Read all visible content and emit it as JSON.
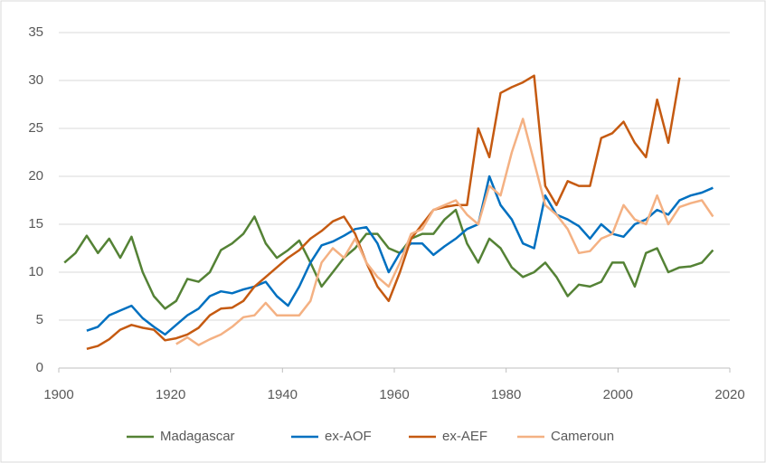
{
  "chart_data": {
    "type": "line",
    "x": [
      1901,
      1903,
      1905,
      1907,
      1909,
      1911,
      1913,
      1915,
      1917,
      1919,
      1921,
      1923,
      1925,
      1927,
      1929,
      1931,
      1933,
      1935,
      1937,
      1939,
      1941,
      1943,
      1945,
      1947,
      1949,
      1951,
      1953,
      1955,
      1957,
      1959,
      1961,
      1963,
      1965,
      1967,
      1969,
      1971,
      1973,
      1975,
      1977,
      1979,
      1981,
      1983,
      1985,
      1987,
      1989,
      1991,
      1993,
      1995,
      1997,
      1999,
      2001,
      2003,
      2005,
      2007,
      2009,
      2011,
      2013,
      2015,
      2017
    ],
    "series": [
      {
        "name": "Madagascar",
        "color": "#548235",
        "values": [
          11,
          12,
          13.8,
          12,
          13.5,
          11.5,
          13.7,
          10,
          7.5,
          6.2,
          7,
          9.3,
          9,
          10,
          12.3,
          13,
          14,
          15.8,
          13,
          11.5,
          12.3,
          13.3,
          11,
          8.5,
          10,
          11.5,
          12.5,
          14,
          14,
          12.5,
          12,
          13.5,
          14,
          14,
          15.5,
          16.5,
          13,
          11,
          13.5,
          12.5,
          10.5,
          9.5,
          10,
          11,
          9.5,
          7.5,
          8.7,
          8.5,
          9,
          11,
          11,
          8.5,
          12,
          12.5,
          10,
          10.5,
          10.6,
          11,
          12.3
        ]
      },
      {
        "name": "ex-AOF",
        "color": "#0070c0",
        "values": [
          null,
          null,
          3.9,
          4.3,
          5.5,
          6,
          6.5,
          5.2,
          4.3,
          3.5,
          4.5,
          5.5,
          6.2,
          7.5,
          8,
          7.8,
          8.2,
          8.5,
          9,
          7.5,
          6.5,
          8.5,
          11,
          12.8,
          13.2,
          13.8,
          14.5,
          14.7,
          13,
          10,
          12,
          13,
          13,
          11.8,
          12.7,
          13.5,
          14.5,
          15,
          20,
          17,
          15.5,
          13,
          12.5,
          18,
          16,
          15.5,
          14.8,
          13.5,
          15,
          14,
          13.7,
          15,
          15.5,
          16.5,
          16,
          17.5,
          18,
          18.3,
          18.8
        ]
      },
      {
        "name": "ex-AEF",
        "color": "#c55a11",
        "values": [
          null,
          null,
          2,
          2.3,
          3,
          4,
          4.5,
          4.2,
          4,
          2.9,
          3.1,
          3.5,
          4.2,
          5.5,
          6.2,
          6.3,
          7,
          8.5,
          9.5,
          10.5,
          11.5,
          12.3,
          13.5,
          14.3,
          15.3,
          15.8,
          14,
          11,
          8.5,
          7,
          10,
          13.5,
          15,
          16.5,
          16.8,
          17,
          17,
          25,
          22,
          28.7,
          29.3,
          29.8,
          30.5,
          19,
          17,
          19.5,
          19,
          19,
          24,
          24.5,
          25.7,
          23.5,
          22,
          28,
          23.5,
          30.3,
          null,
          null,
          null
        ]
      },
      {
        "name": "Cameroun",
        "color": "#f4b183",
        "values": [
          null,
          null,
          null,
          null,
          null,
          null,
          null,
          null,
          null,
          null,
          2.5,
          3.2,
          2.4,
          3,
          3.5,
          4.3,
          5.3,
          5.5,
          6.8,
          5.5,
          5.5,
          5.5,
          7,
          11,
          12.5,
          11.5,
          13.5,
          11,
          9.5,
          8.5,
          11,
          14,
          14.5,
          16.5,
          17,
          17.5,
          16,
          15,
          19,
          18,
          22.5,
          26,
          21.5,
          17,
          16,
          14.5,
          12,
          12.2,
          13.5,
          14,
          17,
          15.5,
          15,
          18,
          15,
          16.8,
          17.2,
          17.5,
          15.8
        ]
      }
    ],
    "xlim": [
      1900,
      2020
    ],
    "xticks": [
      1900,
      1920,
      1940,
      1960,
      1980,
      2000,
      2020
    ],
    "ylim": [
      0,
      35
    ],
    "yticks": [
      0,
      5,
      10,
      15,
      20,
      25,
      30,
      35
    ],
    "grid": true,
    "legend": "bottom"
  }
}
